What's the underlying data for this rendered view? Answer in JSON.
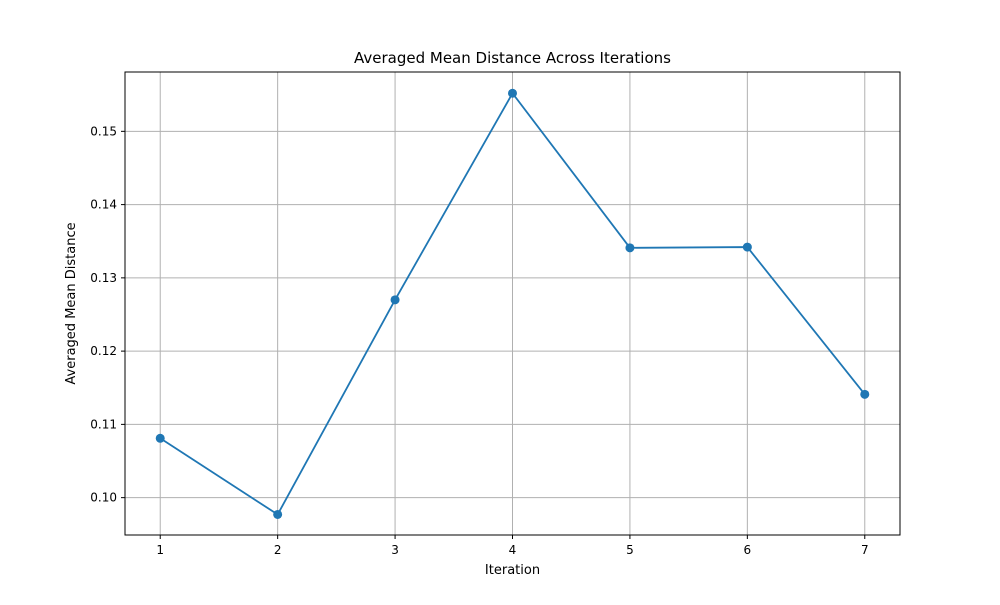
{
  "chart_data": {
    "type": "line",
    "title": "Averaged Mean Distance Across Iterations",
    "xlabel": "Iteration",
    "ylabel": "Averaged Mean Distance",
    "x": [
      1,
      2,
      3,
      4,
      5,
      6,
      7
    ],
    "series": [
      {
        "values": [
          0.1081,
          0.0977,
          0.127,
          0.1552,
          0.1341,
          0.1342,
          0.1141
        ]
      }
    ],
    "xlim": [
      0.7,
      7.3
    ],
    "ylim": [
      0.0949,
      0.1581
    ],
    "xticks": [
      "1",
      "2",
      "3",
      "4",
      "5",
      "6",
      "7"
    ],
    "yticks": [
      "0.10",
      "0.11",
      "0.12",
      "0.13",
      "0.14",
      "0.15"
    ],
    "grid": true,
    "markers": true,
    "line_color": "#1f77b4",
    "grid_color": "#b0b0b0"
  }
}
